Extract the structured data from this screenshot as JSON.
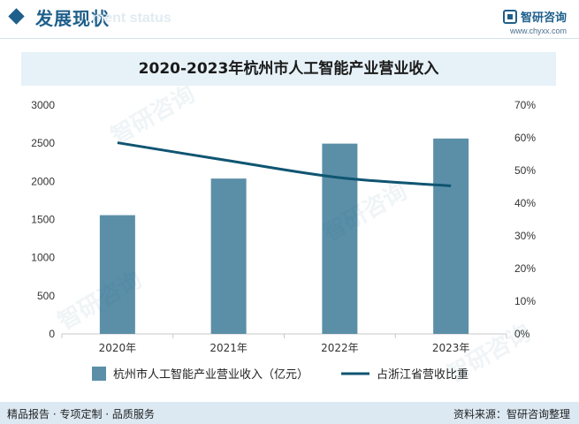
{
  "header": {
    "title": "发展现状",
    "ghost_text": "ment status",
    "brand_name": "智研咨询",
    "brand_url": "www.chyxx.com"
  },
  "colors": {
    "bar": "#5b8fa8",
    "line": "#0f5571",
    "accent": "#1f5f8b"
  },
  "chart_data": {
    "type": "bar",
    "title": "2020-2023年杭州市人工智能产业营业收入",
    "categories": [
      "2020年",
      "2021年",
      "2022年",
      "2023年"
    ],
    "series": [
      {
        "name": "杭州市人工智能产业营业收入（亿元）",
        "type": "bar",
        "axis": "left",
        "values": [
          1557,
          2037,
          2495,
          2562
        ]
      },
      {
        "name": "占浙江省营收比重",
        "type": "line",
        "axis": "right",
        "values": [
          58.5,
          53.0,
          47.8,
          45.3
        ]
      }
    ],
    "ylim": [
      0,
      3000
    ],
    "y_ticks": [
      "3000",
      "2500",
      "2000",
      "1500",
      "1000",
      "500",
      "0"
    ],
    "y2lim": [
      0,
      70
    ],
    "y2_ticks": [
      "70%",
      "60%",
      "50%",
      "40%",
      "30%",
      "20%",
      "10%",
      "0%"
    ],
    "grid": false,
    "legend": "bottom"
  },
  "footer": {
    "left": "精品报告 · 专项定制 · 品质服务",
    "right": "资料来源：智研咨询整理"
  }
}
